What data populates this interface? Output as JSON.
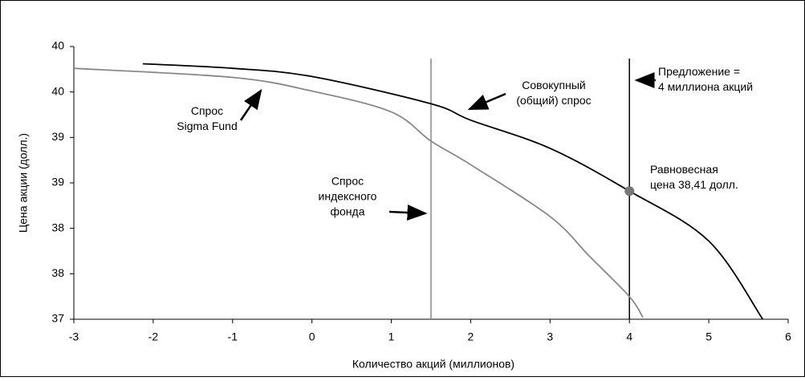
{
  "chart_data": {
    "type": "line",
    "xlabel": "Количество акций (миллионов)",
    "ylabel": "Цена акции (долл.)",
    "xlim": [
      -3,
      6
    ],
    "xticks": [
      -3,
      -2,
      -1,
      0,
      1,
      2,
      3,
      4,
      5,
      6
    ],
    "ylim": [
      37,
      40
    ],
    "yticks": [
      37,
      {
        "value": 37.5,
        "label": "38"
      },
      38,
      {
        "value": 38.5,
        "label": "39"
      },
      39,
      {
        "value": 39.5,
        "label": "40"
      },
      40
    ],
    "series": [
      {
        "color": "#000000",
        "x": [
          -2.13,
          -1,
          0,
          1.5,
          2,
          3,
          4,
          5,
          5.68
        ],
        "values": [
          39.81,
          39.76,
          39.67,
          39.37,
          39.19,
          38.88,
          38.41,
          37.86,
          37
        ]
      },
      {
        "color": "#888888",
        "x": [
          -3,
          -1,
          0,
          1,
          1.5,
          2,
          3,
          3.5,
          4,
          4.17
        ],
        "values": [
          39.76,
          39.66,
          39.51,
          39.28,
          38.96,
          38.7,
          38.13,
          37.69,
          37.25,
          37.02
        ]
      }
    ],
    "vlines": [
      {
        "x": 1.5,
        "color": "#888888"
      },
      {
        "x": 4,
        "color": "#000000"
      }
    ],
    "point": {
      "x": 4,
      "y": 38.41,
      "color": "#777777"
    },
    "annotations": [
      {
        "lines": [
          "Спрос",
          "Sigma Fund"
        ]
      },
      {
        "lines": [
          "Совокупный",
          "(общий) спрос"
        ]
      },
      {
        "lines": [
          "Предложение =",
          "4 миллиона акций"
        ]
      },
      {
        "lines": [
          "Равновесная",
          "цена 38,41 долл."
        ]
      },
      {
        "lines": [
          "Спрос",
          "индексного",
          "фонда"
        ]
      }
    ]
  }
}
